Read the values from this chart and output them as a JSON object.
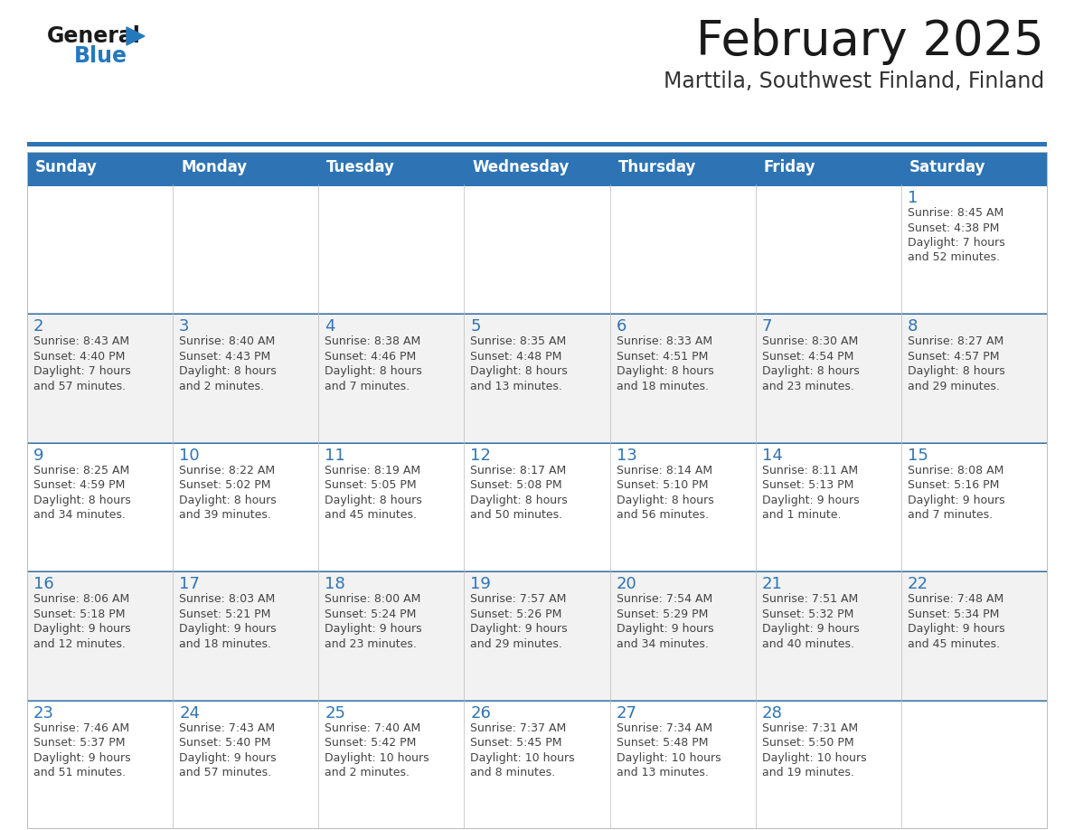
{
  "title": "February 2025",
  "subtitle": "Marttila, Southwest Finland, Finland",
  "days_of_week": [
    "Sunday",
    "Monday",
    "Tuesday",
    "Wednesday",
    "Thursday",
    "Friday",
    "Saturday"
  ],
  "header_bg": "#2E74B5",
  "header_text": "#FFFFFF",
  "row_bg_light": "#FFFFFF",
  "row_bg_alt": "#F2F2F2",
  "cell_border_color": "#BBBBBB",
  "week_sep_color": "#2E74B5",
  "day_num_color": "#2E74B5",
  "text_color": "#444444",
  "title_color": "#1a1a1a",
  "subtitle_color": "#333333",
  "logo_general_color": "#1a1a1a",
  "logo_blue_color": "#2479BE",
  "calendar_data": [
    [
      {
        "day": null,
        "info": null
      },
      {
        "day": null,
        "info": null
      },
      {
        "day": null,
        "info": null
      },
      {
        "day": null,
        "info": null
      },
      {
        "day": null,
        "info": null
      },
      {
        "day": null,
        "info": null
      },
      {
        "day": 1,
        "info": "Sunrise: 8:45 AM\nSunset: 4:38 PM\nDaylight: 7 hours\nand 52 minutes."
      }
    ],
    [
      {
        "day": 2,
        "info": "Sunrise: 8:43 AM\nSunset: 4:40 PM\nDaylight: 7 hours\nand 57 minutes."
      },
      {
        "day": 3,
        "info": "Sunrise: 8:40 AM\nSunset: 4:43 PM\nDaylight: 8 hours\nand 2 minutes."
      },
      {
        "day": 4,
        "info": "Sunrise: 8:38 AM\nSunset: 4:46 PM\nDaylight: 8 hours\nand 7 minutes."
      },
      {
        "day": 5,
        "info": "Sunrise: 8:35 AM\nSunset: 4:48 PM\nDaylight: 8 hours\nand 13 minutes."
      },
      {
        "day": 6,
        "info": "Sunrise: 8:33 AM\nSunset: 4:51 PM\nDaylight: 8 hours\nand 18 minutes."
      },
      {
        "day": 7,
        "info": "Sunrise: 8:30 AM\nSunset: 4:54 PM\nDaylight: 8 hours\nand 23 minutes."
      },
      {
        "day": 8,
        "info": "Sunrise: 8:27 AM\nSunset: 4:57 PM\nDaylight: 8 hours\nand 29 minutes."
      }
    ],
    [
      {
        "day": 9,
        "info": "Sunrise: 8:25 AM\nSunset: 4:59 PM\nDaylight: 8 hours\nand 34 minutes."
      },
      {
        "day": 10,
        "info": "Sunrise: 8:22 AM\nSunset: 5:02 PM\nDaylight: 8 hours\nand 39 minutes."
      },
      {
        "day": 11,
        "info": "Sunrise: 8:19 AM\nSunset: 5:05 PM\nDaylight: 8 hours\nand 45 minutes."
      },
      {
        "day": 12,
        "info": "Sunrise: 8:17 AM\nSunset: 5:08 PM\nDaylight: 8 hours\nand 50 minutes."
      },
      {
        "day": 13,
        "info": "Sunrise: 8:14 AM\nSunset: 5:10 PM\nDaylight: 8 hours\nand 56 minutes."
      },
      {
        "day": 14,
        "info": "Sunrise: 8:11 AM\nSunset: 5:13 PM\nDaylight: 9 hours\nand 1 minute."
      },
      {
        "day": 15,
        "info": "Sunrise: 8:08 AM\nSunset: 5:16 PM\nDaylight: 9 hours\nand 7 minutes."
      }
    ],
    [
      {
        "day": 16,
        "info": "Sunrise: 8:06 AM\nSunset: 5:18 PM\nDaylight: 9 hours\nand 12 minutes."
      },
      {
        "day": 17,
        "info": "Sunrise: 8:03 AM\nSunset: 5:21 PM\nDaylight: 9 hours\nand 18 minutes."
      },
      {
        "day": 18,
        "info": "Sunrise: 8:00 AM\nSunset: 5:24 PM\nDaylight: 9 hours\nand 23 minutes."
      },
      {
        "day": 19,
        "info": "Sunrise: 7:57 AM\nSunset: 5:26 PM\nDaylight: 9 hours\nand 29 minutes."
      },
      {
        "day": 20,
        "info": "Sunrise: 7:54 AM\nSunset: 5:29 PM\nDaylight: 9 hours\nand 34 minutes."
      },
      {
        "day": 21,
        "info": "Sunrise: 7:51 AM\nSunset: 5:32 PM\nDaylight: 9 hours\nand 40 minutes."
      },
      {
        "day": 22,
        "info": "Sunrise: 7:48 AM\nSunset: 5:34 PM\nDaylight: 9 hours\nand 45 minutes."
      }
    ],
    [
      {
        "day": 23,
        "info": "Sunrise: 7:46 AM\nSunset: 5:37 PM\nDaylight: 9 hours\nand 51 minutes."
      },
      {
        "day": 24,
        "info": "Sunrise: 7:43 AM\nSunset: 5:40 PM\nDaylight: 9 hours\nand 57 minutes."
      },
      {
        "day": 25,
        "info": "Sunrise: 7:40 AM\nSunset: 5:42 PM\nDaylight: 10 hours\nand 2 minutes."
      },
      {
        "day": 26,
        "info": "Sunrise: 7:37 AM\nSunset: 5:45 PM\nDaylight: 10 hours\nand 8 minutes."
      },
      {
        "day": 27,
        "info": "Sunrise: 7:34 AM\nSunset: 5:48 PM\nDaylight: 10 hours\nand 13 minutes."
      },
      {
        "day": 28,
        "info": "Sunrise: 7:31 AM\nSunset: 5:50 PM\nDaylight: 10 hours\nand 19 minutes."
      },
      {
        "day": null,
        "info": null
      }
    ]
  ]
}
